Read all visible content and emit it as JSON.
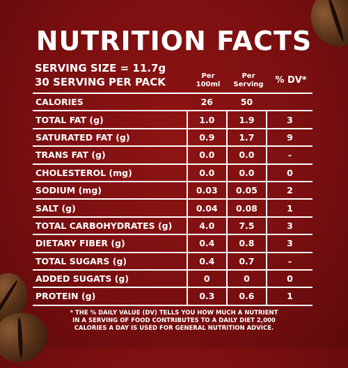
{
  "title": "NUTRITION FACTS",
  "serving": {
    "size": "SERVING SIZE = 11.7g",
    "per_pack": "30 SERVING PER PACK"
  },
  "columns": {
    "per100_line1": "Per",
    "per100_line2": "100ml",
    "serving_line1": "Per",
    "serving_line2": "Serving",
    "dv": "% DV*"
  },
  "rows": [
    {
      "name": "CALORIES",
      "per100": "26",
      "serving": "50",
      "dv": ""
    },
    {
      "name": "TOTAL FAT (g)",
      "per100": "1.0",
      "serving": "1.9",
      "dv": "3"
    },
    {
      "name": "SATURATED FAT (g)",
      "per100": "0.9",
      "serving": "1.7",
      "dv": "9"
    },
    {
      "name": "TRANS FAT (g)",
      "per100": "0.0",
      "serving": "0.0",
      "dv": "-"
    },
    {
      "name": "CHOLESTEROL (mg)",
      "per100": "0.0",
      "serving": "0.0",
      "dv": "0"
    },
    {
      "name": "SODIUM (mg)",
      "per100": "0.03",
      "serving": "0.05",
      "dv": "2"
    },
    {
      "name": "SALT (g)",
      "per100": "0.04",
      "serving": "0.08",
      "dv": "1"
    },
    {
      "name": "TOTAL CARBOHYDRATES (g)",
      "per100": "4.0",
      "serving": "7.5",
      "dv": "3"
    },
    {
      "name": "DIETARY FIBER (g)",
      "per100": "0.4",
      "serving": "0.8",
      "dv": "3"
    },
    {
      "name": "TOTAL SUGARS (g)",
      "per100": "0.4",
      "serving": "0.7",
      "dv": "-"
    },
    {
      "name": "ADDED SUGATS (g)",
      "per100": "0",
      "serving": "0",
      "dv": "0"
    },
    {
      "name": "PROTEIN (g)",
      "per100": "0.3",
      "serving": "0.6",
      "dv": "1"
    }
  ],
  "footnote": {
    "line1": "* THE % DAILY VALUE (DV) TELLS YOU HOW MUCH A NUTRIENT",
    "line2": "IN A SERVING OF FOOD CONTRIBUTES TO A DAILY DIET 2,000",
    "line3": "CALORIES A DAY IS USED FOR GENERAL NUTRITION ADVICE."
  },
  "colors": {
    "background": "#7a0f10",
    "text": "#ffffff"
  }
}
